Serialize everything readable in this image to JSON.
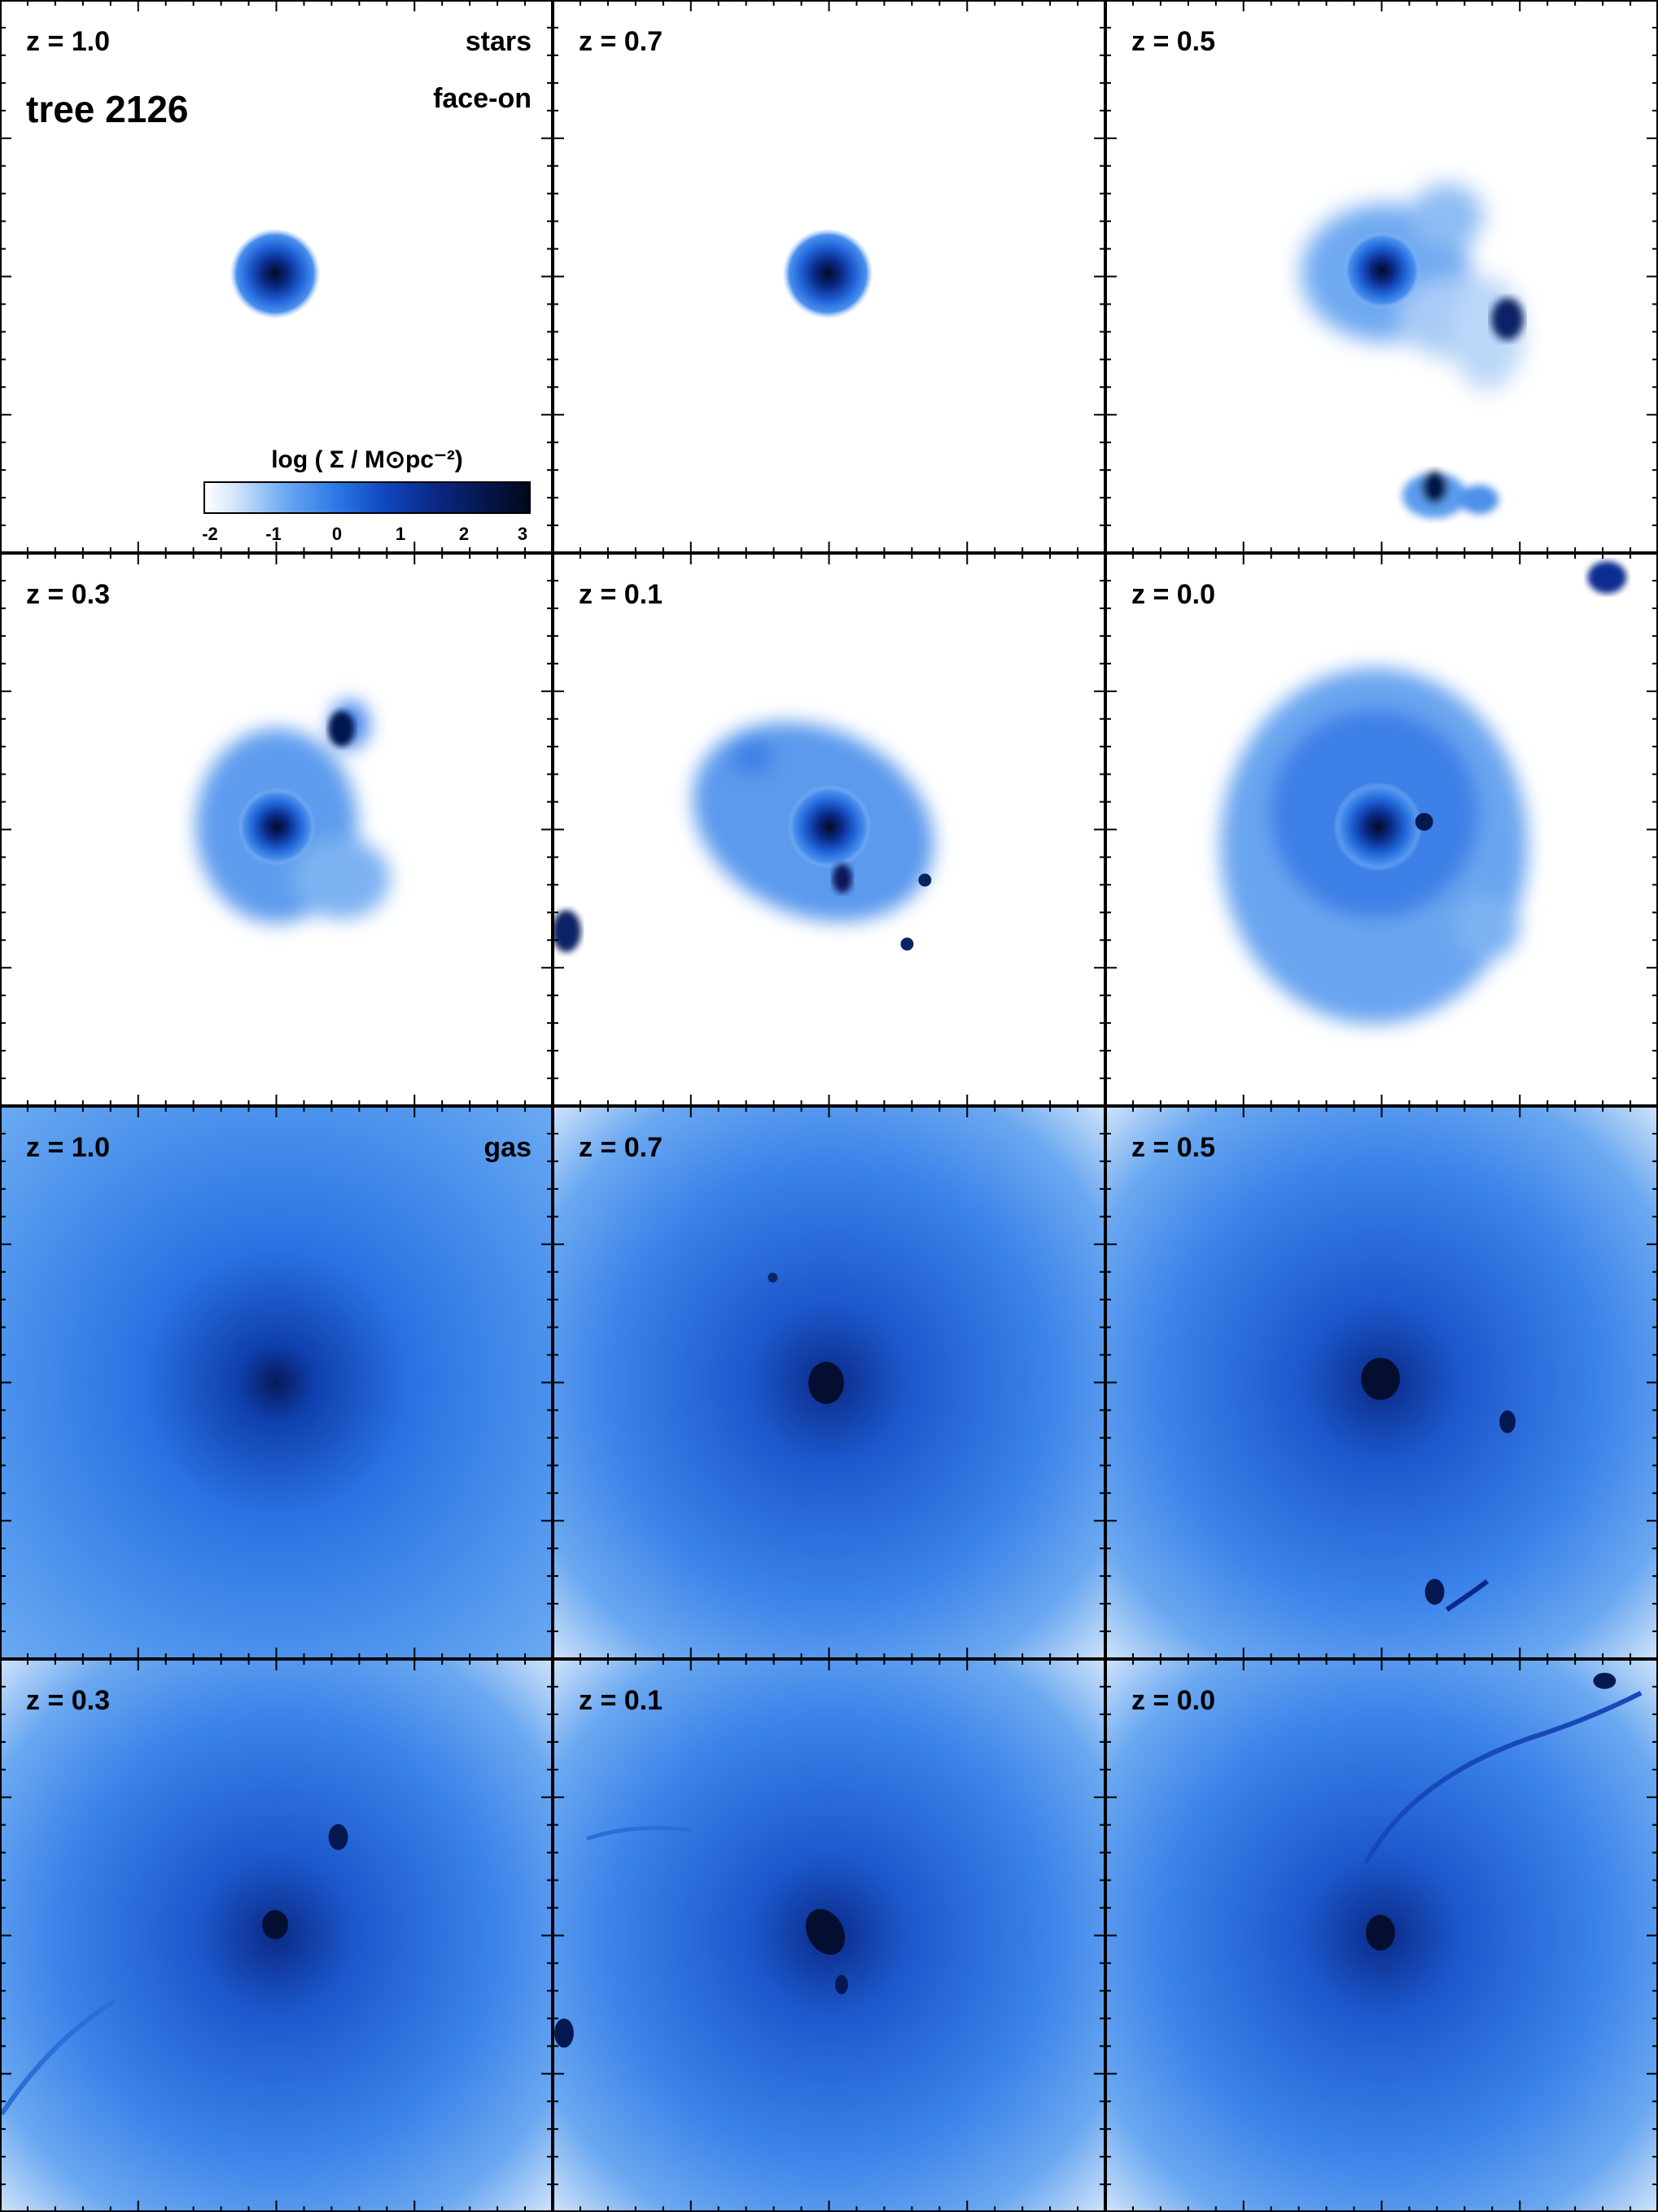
{
  "figure": {
    "tree_label": "tree 2126",
    "component_stars": "stars",
    "component_gas": "gas",
    "projection": "face-on",
    "colorbar": {
      "title": "log ( Σ / M⊙pc⁻²)",
      "ticks": [
        "-2",
        "-1",
        "0",
        "1",
        "2",
        "3"
      ],
      "colors": [
        "#ffffff",
        "#cfe2fb",
        "#6aa8f3",
        "#2e7ae6",
        "#1048c0",
        "#0a2a88",
        "#061852",
        "#02081c"
      ]
    }
  },
  "panels": [
    {
      "z": "z = 1.0"
    },
    {
      "z": "z = 0.7"
    },
    {
      "z": "z = 0.5"
    },
    {
      "z": "z = 0.3"
    },
    {
      "z": "z = 0.1"
    },
    {
      "z": "z = 0.0"
    },
    {
      "z": "z = 1.0"
    },
    {
      "z": "z = 0.7"
    },
    {
      "z": "z = 0.5"
    },
    {
      "z": "z = 0.3"
    },
    {
      "z": "z = 0.1"
    },
    {
      "z": "z = 0.0"
    }
  ]
}
